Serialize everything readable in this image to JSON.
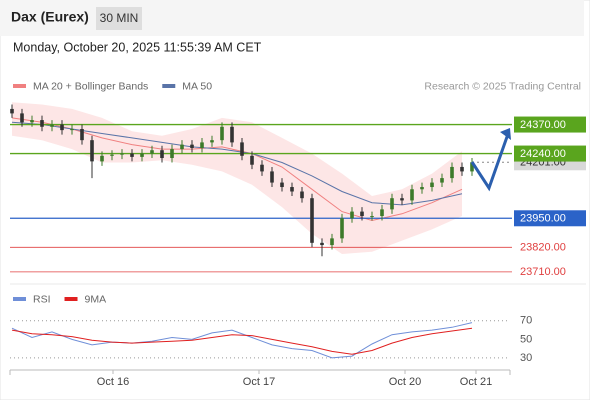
{
  "header": {
    "title": "Dax (Eurex)",
    "interval": "30 MIN",
    "timestamp": "Monday, October 20, 2025 11:55:39 AM CET"
  },
  "chart_data": [
    {
      "type": "candlestick",
      "source": "Research © 2025 Trading Central",
      "x": [
        0,
        1,
        2,
        3,
        4,
        5,
        6,
        7,
        8,
        9,
        10,
        11,
        12,
        13,
        14,
        15,
        16,
        17,
        18,
        19,
        20,
        21,
        22,
        23,
        24,
        25,
        26,
        27,
        28,
        29,
        30,
        31,
        32,
        33,
        34,
        35,
        36,
        37,
        38,
        39,
        40,
        41,
        42,
        43,
        44,
        45,
        46
      ],
      "open": [
        24440,
        24420,
        24380,
        24390,
        24360,
        24370,
        24345,
        24350,
        24300,
        24205,
        24230,
        24235,
        24240,
        24225,
        24240,
        24255,
        24220,
        24260,
        24280,
        24265,
        24290,
        24300,
        24360,
        24290,
        24230,
        24190,
        24160,
        24110,
        24090,
        24070,
        24040,
        23840,
        23830,
        23860,
        23950,
        23980,
        23960,
        23960,
        23990,
        24040,
        24030,
        24080,
        24090,
        24110,
        24130,
        24180,
        24160
      ],
      "high": [
        24460,
        24440,
        24410,
        24410,
        24390,
        24390,
        24370,
        24370,
        24320,
        24250,
        24255,
        24260,
        24260,
        24260,
        24275,
        24275,
        24280,
        24300,
        24300,
        24310,
        24320,
        24380,
        24380,
        24310,
        24250,
        24210,
        24180,
        24130,
        24110,
        24090,
        24060,
        23860,
        23880,
        23970,
        24000,
        24000,
        23980,
        24010,
        24060,
        24060,
        24100,
        24110,
        24130,
        24150,
        24200,
        24200,
        24220
      ],
      "low": [
        24400,
        24360,
        24360,
        24340,
        24340,
        24325,
        24325,
        24280,
        24130,
        24185,
        24210,
        24215,
        24205,
        24205,
        24220,
        24200,
        24200,
        24240,
        24245,
        24245,
        24270,
        24280,
        24270,
        24210,
        24170,
        24140,
        24090,
        24070,
        24050,
        24020,
        23820,
        23780,
        23810,
        23840,
        23930,
        23940,
        23940,
        23940,
        23970,
        24010,
        24010,
        24060,
        24070,
        24090,
        24110,
        24140,
        24140
      ],
      "close": [
        24420,
        24380,
        24390,
        24360,
        24370,
        24345,
        24350,
        24300,
        24205,
        24230,
        24235,
        24240,
        24225,
        24240,
        24255,
        24220,
        24260,
        24280,
        24265,
        24290,
        24300,
        24360,
        24290,
        24230,
        24190,
        24160,
        24110,
        24090,
        24070,
        24040,
        23840,
        23830,
        23860,
        23950,
        23980,
        23960,
        23960,
        23990,
        24040,
        24030,
        24080,
        24090,
        24110,
        24130,
        24180,
        24160,
        24201
      ],
      "up_color": "#3d7a2a",
      "down_color": "#333333",
      "series": [
        {
          "name": "MA 20 + Bollinger Bands",
          "color": "#f08080",
          "band_color": "#fde0e0",
          "x": [
            0,
            3,
            6,
            9,
            12,
            15,
            18,
            21,
            24,
            27,
            30,
            33,
            36,
            39,
            42,
            45
          ],
          "values": [
            24400,
            24380,
            24350,
            24310,
            24280,
            24260,
            24260,
            24270,
            24240,
            24180,
            24080,
            23980,
            23940,
            23970,
            24020,
            24080
          ],
          "upper": [
            24470,
            24460,
            24440,
            24400,
            24340,
            24320,
            24350,
            24400,
            24380,
            24310,
            24240,
            24150,
            24050,
            24080,
            24150,
            24250
          ],
          "lower": [
            24320,
            24300,
            24260,
            24200,
            24200,
            24210,
            24190,
            24160,
            24100,
            24000,
            23880,
            23790,
            23800,
            23850,
            23900,
            23960
          ]
        },
        {
          "name": "MA 50",
          "color": "#5a74a8",
          "x": [
            0,
            3,
            6,
            9,
            12,
            15,
            18,
            21,
            24,
            27,
            30,
            33,
            36,
            39,
            42,
            45
          ],
          "values": [
            24380,
            24370,
            24350,
            24330,
            24310,
            24290,
            24270,
            24260,
            24240,
            24200,
            24140,
            24070,
            24020,
            24010,
            24030,
            24060
          ]
        }
      ],
      "levels": [
        {
          "value": 24370,
          "label": "24370.00",
          "color": "#5aa51e",
          "boxed": true
        },
        {
          "value": 24240,
          "label": "24240.00",
          "color": "#5aa51e",
          "boxed": true
        },
        {
          "value": 23950,
          "label": "23950.00",
          "color": "#2b63c8",
          "boxed": true
        },
        {
          "value": 23820,
          "label": "23820.00",
          "color": "#e04040",
          "boxed": false
        },
        {
          "value": 23710,
          "label": "23710.00",
          "color": "#e04040",
          "boxed": false
        }
      ],
      "current": {
        "value": 24201,
        "label": "24201.00"
      },
      "xlim": [
        -0.2,
        49.8
      ],
      "ylim": [
        23660,
        24480
      ],
      "xticks": [
        {
          "value": 10.1,
          "label": "Oct 16"
        },
        {
          "value": 24.7,
          "label": "Oct 17"
        },
        {
          "value": 39.3,
          "label": "Oct 20"
        },
        {
          "value": 46.4,
          "label": "Oct 21"
        }
      ]
    },
    {
      "type": "line",
      "series": [
        {
          "name": "RSI",
          "color": "#6f8fd8",
          "x": [
            0,
            2,
            4,
            6,
            8,
            10,
            12,
            14,
            16,
            18,
            20,
            22,
            24,
            26,
            28,
            30,
            32,
            34,
            36,
            38,
            40,
            42,
            44,
            46
          ],
          "values": [
            62,
            52,
            58,
            50,
            44,
            47,
            46,
            48,
            52,
            50,
            57,
            60,
            52,
            44,
            40,
            38,
            30,
            32,
            45,
            55,
            58,
            60,
            63,
            68
          ]
        },
        {
          "name": "9MA",
          "color": "#e02020",
          "x": [
            0,
            2,
            4,
            6,
            8,
            10,
            12,
            14,
            16,
            18,
            20,
            22,
            24,
            26,
            28,
            30,
            32,
            34,
            36,
            38,
            40,
            42,
            44,
            46
          ],
          "values": [
            60,
            56,
            55,
            53,
            49,
            47,
            46,
            47,
            48,
            49,
            52,
            55,
            54,
            50,
            46,
            42,
            37,
            34,
            38,
            46,
            52,
            56,
            59,
            62
          ]
        }
      ],
      "xlim": [
        -0.2,
        49.8
      ],
      "ylim": [
        17,
        87
      ],
      "yticks": [
        70,
        50,
        30
      ],
      "dotted_grid": [
        70,
        30
      ]
    }
  ]
}
